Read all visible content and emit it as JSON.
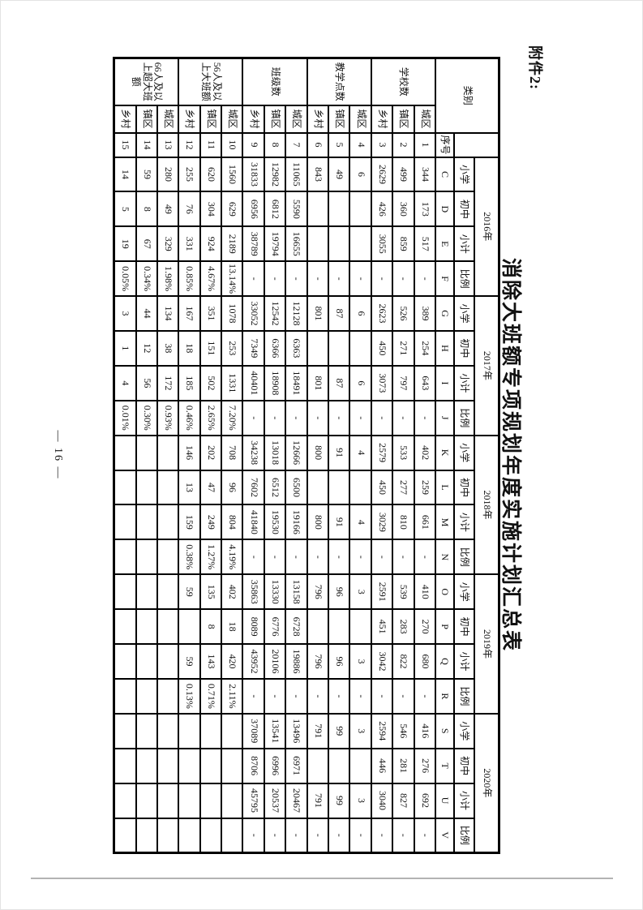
{
  "page": {
    "attachment_label": "附件2:",
    "title": "消除大班额专项规划年度实施计划汇总表",
    "page_number": "— 16 —"
  },
  "table": {
    "corner_header": "类别",
    "serial_header": "序号",
    "years": [
      "2016年",
      "2017年",
      "2018年",
      "2019年",
      "2020年"
    ],
    "metric_headers": [
      "小学",
      "初中",
      "小计",
      "比例"
    ],
    "column_letters": [
      "C",
      "D",
      "E",
      "F",
      "G",
      "H",
      "I",
      "J",
      "K",
      "L",
      "M",
      "N",
      "O",
      "P",
      "Q",
      "R",
      "S",
      "T",
      "U",
      "V"
    ],
    "groups": [
      {
        "label": "学校数",
        "rows": [
          {
            "no": "1",
            "type": "城区",
            "values": [
              "344",
              "173",
              "517",
              "-",
              "389",
              "254",
              "643",
              "-",
              "402",
              "259",
              "661",
              "-",
              "410",
              "270",
              "680",
              "-",
              "416",
              "276",
              "692",
              "-"
            ]
          },
          {
            "no": "2",
            "type": "镇区",
            "values": [
              "499",
              "360",
              "859",
              "-",
              "526",
              "271",
              "797",
              "-",
              "533",
              "277",
              "810",
              "-",
              "539",
              "283",
              "822",
              "-",
              "546",
              "281",
              "827",
              "-"
            ]
          },
          {
            "no": "3",
            "type": "乡村",
            "values": [
              "2629",
              "426",
              "3055",
              "-",
              "2623",
              "450",
              "3073",
              "-",
              "2579",
              "450",
              "3029",
              "-",
              "2591",
              "451",
              "3042",
              "-",
              "2594",
              "446",
              "3040",
              "-"
            ]
          }
        ]
      },
      {
        "label": "教学点数",
        "rows": [
          {
            "no": "4",
            "type": "城区",
            "values": [
              "6",
              "",
              "",
              "-",
              "6",
              "",
              "6",
              "-",
              "4",
              "",
              "4",
              "-",
              "3",
              "",
              "3",
              "-",
              "3",
              "",
              "3",
              "-"
            ]
          },
          {
            "no": "5",
            "type": "镇区",
            "values": [
              "49",
              "",
              "",
              "-",
              "87",
              "",
              "87",
              "-",
              "91",
              "",
              "91",
              "-",
              "96",
              "",
              "96",
              "-",
              "99",
              "",
              "99",
              "-"
            ]
          },
          {
            "no": "6",
            "type": "乡村",
            "values": [
              "843",
              "",
              "",
              "-",
              "801",
              "",
              "801",
              "-",
              "800",
              "",
              "800",
              "-",
              "796",
              "",
              "796",
              "-",
              "791",
              "",
              "791",
              "-"
            ]
          }
        ]
      },
      {
        "label": "班级数",
        "rows": [
          {
            "no": "7",
            "type": "城区",
            "values": [
              "11065",
              "5590",
              "16655",
              "-",
              "12128",
              "6363",
              "18491",
              "-",
              "12666",
              "6500",
              "19166",
              "-",
              "13158",
              "6728",
              "19886",
              "-",
              "13496",
              "6971",
              "20467",
              "-"
            ]
          },
          {
            "no": "8",
            "type": "镇区",
            "values": [
              "12982",
              "6812",
              "19794",
              "-",
              "12542",
              "6366",
              "18908",
              "-",
              "13018",
              "6512",
              "19530",
              "-",
              "13330",
              "6776",
              "20106",
              "-",
              "13541",
              "6996",
              "20537",
              "-"
            ]
          },
          {
            "no": "9",
            "type": "乡村",
            "values": [
              "31833",
              "6956",
              "38789",
              "-",
              "33052",
              "7349",
              "40401",
              "-",
              "34238",
              "7602",
              "41840",
              "-",
              "35863",
              "8089",
              "43952",
              "-",
              "37089",
              "8706",
              "45795",
              "-"
            ]
          }
        ]
      },
      {
        "label": "56人及以上大班额",
        "rows": [
          {
            "no": "10",
            "type": "城区",
            "values": [
              "1560",
              "629",
              "2189",
              "13.14%",
              "1078",
              "253",
              "1331",
              "7.20%",
              "708",
              "96",
              "804",
              "4.19%",
              "402",
              "18",
              "420",
              "2.11%",
              "",
              "",
              "",
              ""
            ]
          },
          {
            "no": "11",
            "type": "镇区",
            "values": [
              "620",
              "304",
              "924",
              "4.67%",
              "351",
              "151",
              "502",
              "2.65%",
              "202",
              "47",
              "249",
              "1.27%",
              "135",
              "8",
              "143",
              "0.71%",
              "",
              "",
              "",
              ""
            ]
          },
          {
            "no": "12",
            "type": "乡村",
            "values": [
              "255",
              "76",
              "331",
              "0.85%",
              "167",
              "18",
              "185",
              "0.46%",
              "146",
              "13",
              "159",
              "0.38%",
              "59",
              "",
              "59",
              "0.13%",
              "",
              "",
              "",
              ""
            ]
          }
        ]
      },
      {
        "label": "66人及以上超大班额",
        "rows": [
          {
            "no": "13",
            "type": "城区",
            "values": [
              "280",
              "49",
              "329",
              "1.98%",
              "134",
              "38",
              "172",
              "0.93%",
              "",
              "",
              "",
              "",
              "",
              "",
              "",
              "",
              "",
              "",
              "",
              ""
            ]
          },
          {
            "no": "14",
            "type": "镇区",
            "values": [
              "59",
              "8",
              "67",
              "0.34%",
              "44",
              "12",
              "56",
              "0.30%",
              "",
              "",
              "",
              "",
              "",
              "",
              "",
              "",
              "",
              "",
              "",
              ""
            ]
          },
          {
            "no": "15",
            "type": "乡村",
            "values": [
              "14",
              "5",
              "19",
              "0.05%",
              "3",
              "1",
              "4",
              "0.01%",
              "",
              "",
              "",
              "",
              "",
              "",
              "",
              "",
              "",
              "",
              "",
              ""
            ]
          }
        ]
      }
    ]
  }
}
